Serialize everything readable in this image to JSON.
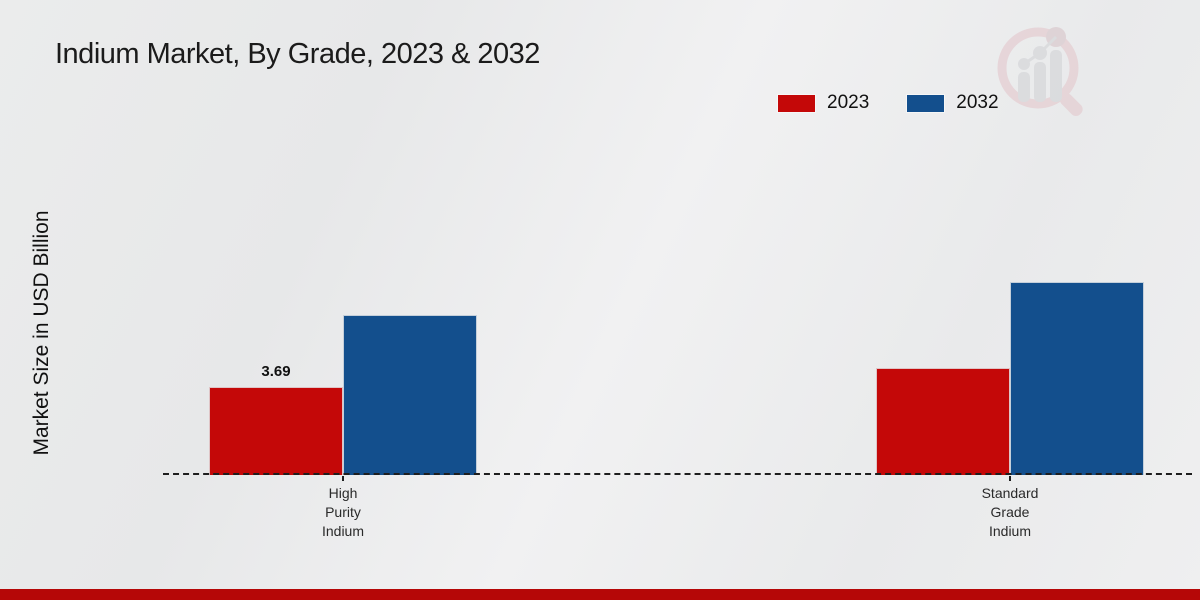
{
  "chart_data": {
    "type": "bar",
    "title": "Indium Market, By Grade, 2023 & 2032",
    "ylabel": "Market Size in USD Billion",
    "xlabel": "",
    "categories": [
      "High Purity Indium",
      "Standard Grade Indium"
    ],
    "category_tick_lines": [
      [
        "High",
        "Purity",
        "Indium"
      ],
      [
        "Standard",
        "Grade",
        "Indium"
      ]
    ],
    "series": [
      {
        "name": "2023",
        "color": "#c40808",
        "values": [
          3.69,
          4.5
        ]
      },
      {
        "name": "2032",
        "color": "#134f8d",
        "values": [
          6.7,
          8.1
        ]
      }
    ],
    "data_labels": [
      {
        "series": 0,
        "category": 0,
        "text": "3.69"
      }
    ],
    "ylim": [
      0,
      8.5
    ],
    "grid": false,
    "legend_position": "top-right",
    "baseline_style": "dashed"
  },
  "icons": {
    "watermark": "mrfr-magnifier-bar-chart-logo"
  },
  "footer": {
    "accent_color": "#b50707"
  }
}
